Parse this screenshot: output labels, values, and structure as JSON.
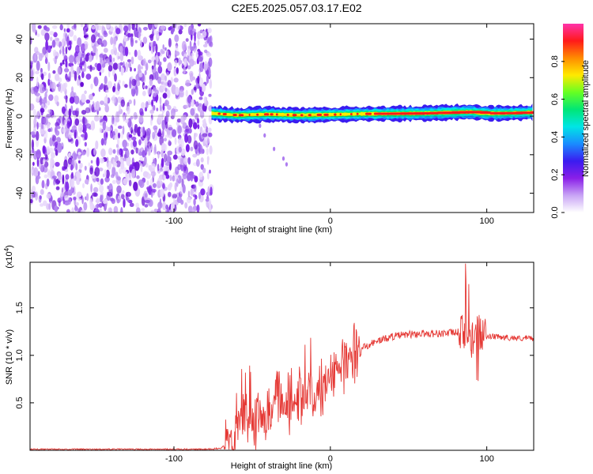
{
  "title": "C2E5.2025.057.03.17.E02",
  "colors": {
    "noise_purple": "#7a1fe8",
    "line_red": "#e53935",
    "frame": "#000000"
  },
  "chart_data": [
    {
      "type": "heatmap",
      "title": "C2E5.2025.057.03.17.E02",
      "xlabel": "Height of straight line (km)",
      "ylabel": "Frequency (Hz)",
      "xlim": [
        -192,
        130
      ],
      "ylim": [
        -50,
        48
      ],
      "xticks": [
        -100,
        0,
        100
      ],
      "yticks": [
        -40,
        -20,
        0,
        20,
        40
      ],
      "xtick_labels": [
        "-100",
        "0",
        "100"
      ],
      "ytick_labels": [
        "-40",
        "-20",
        "0",
        "20",
        "40"
      ],
      "noise_region_x": [
        -192,
        -76
      ],
      "signal_band": {
        "x": [
          -76,
          -60,
          -40,
          -20,
          0,
          20,
          40,
          60,
          80,
          90,
          100,
          110,
          130
        ],
        "center_hz": [
          1.5,
          0.5,
          1.0,
          0.5,
          0.8,
          1.2,
          1.3,
          1.5,
          2.0,
          2.2,
          1.5,
          1.5,
          2.0
        ]
      },
      "colorbar": {
        "label": "Normalized spectral amplitude",
        "range": [
          0,
          1
        ],
        "ticks": [
          0,
          0.2,
          0.4,
          0.6,
          0.8
        ],
        "tick_labels": [
          "0.0",
          "0.2",
          "0.4",
          "0.6",
          "0.8"
        ],
        "colors": [
          "#ffffff",
          "#c8a4f5",
          "#8a1fe8",
          "#3a1cf0",
          "#1a8cff",
          "#00e5e5",
          "#00e676",
          "#66ff22",
          "#ffea00",
          "#ff8c00",
          "#ff1a1a",
          "#ff33aa"
        ]
      }
    },
    {
      "type": "line",
      "xlabel": "Height of straight line (km)",
      "ylabel": "SNR (10 * v/v)",
      "y_multiplier_label": "(x10",
      "y_multiplier_exp": "4",
      "y_multiplier_close": ")",
      "xlim": [
        -192,
        130
      ],
      "ylim": [
        0,
        1.98
      ],
      "xticks": [
        -100,
        0,
        100
      ],
      "yticks": [
        0.5,
        1.0,
        1.5
      ],
      "xtick_labels": [
        "-100",
        "0",
        "100"
      ],
      "ytick_labels": [
        "0.5",
        "1.0",
        "1.5"
      ],
      "series": [
        {
          "color": "#e53935",
          "x": [
            -192,
            -160,
            -120,
            -100,
            -80,
            -70,
            -65,
            -60,
            -55,
            -50,
            -45,
            -40,
            -35,
            -30,
            -25,
            -20,
            -15,
            -10,
            -5,
            0,
            5,
            10,
            15,
            20,
            30,
            40,
            50,
            60,
            70,
            80,
            85,
            88,
            90,
            92,
            94,
            96,
            100,
            110,
            120,
            130
          ],
          "y": [
            0.01,
            0.01,
            0.01,
            0.01,
            0.01,
            0.02,
            0.1,
            0.3,
            0.35,
            0.3,
            0.35,
            0.3,
            0.55,
            0.5,
            0.5,
            0.55,
            0.6,
            0.55,
            0.7,
            0.75,
            0.85,
            0.92,
            1.0,
            1.08,
            1.15,
            1.2,
            1.22,
            1.23,
            1.23,
            1.24,
            1.25,
            1.2,
            1.1,
            1.25,
            1.3,
            1.22,
            1.2,
            1.19,
            1.18,
            1.18
          ]
        }
      ]
    }
  ]
}
